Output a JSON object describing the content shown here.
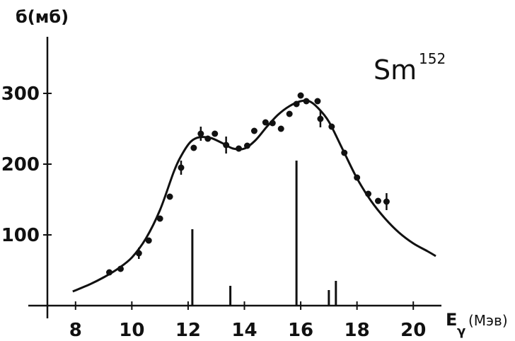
{
  "chart_data": {
    "type": "scatter",
    "ylabel": "б(мб)",
    "xlabel_main": "E",
    "xlabel_sub": "γ",
    "xlabel_unit": "(Мэв)",
    "annotation": {
      "element": "Sm",
      "mass": "152"
    },
    "xlim": [
      7,
      21
    ],
    "ylim": [
      0,
      380
    ],
    "grid": false,
    "x_ticks": [
      {
        "value": 8,
        "label": "8"
      },
      {
        "value": 10,
        "label": "10"
      },
      {
        "value": 12,
        "label": "12"
      },
      {
        "value": 14,
        "label": "14"
      },
      {
        "value": 16,
        "label": "16"
      },
      {
        "value": 18,
        "label": "18"
      },
      {
        "value": 20,
        "label": "20"
      }
    ],
    "y_ticks": [
      {
        "value": 100,
        "label": "100"
      },
      {
        "value": 200,
        "label": "200"
      },
      {
        "value": 300,
        "label": "300"
      }
    ],
    "series": [
      {
        "type": "scatter",
        "points": [
          {
            "x": 9.2,
            "y": 47
          },
          {
            "x": 9.6,
            "y": 52
          },
          {
            "x": 10.25,
            "y": 74,
            "err": 8
          },
          {
            "x": 10.6,
            "y": 92
          },
          {
            "x": 11.0,
            "y": 123
          },
          {
            "x": 11.35,
            "y": 154
          },
          {
            "x": 11.75,
            "y": 195,
            "err": 10
          },
          {
            "x": 12.2,
            "y": 223
          },
          {
            "x": 12.45,
            "y": 243,
            "err": 10
          },
          {
            "x": 12.7,
            "y": 236
          },
          {
            "x": 12.95,
            "y": 243
          },
          {
            "x": 13.35,
            "y": 227,
            "err": 12
          },
          {
            "x": 13.8,
            "y": 222
          },
          {
            "x": 14.1,
            "y": 226
          },
          {
            "x": 14.35,
            "y": 247
          },
          {
            "x": 14.75,
            "y": 259
          },
          {
            "x": 15.0,
            "y": 258
          },
          {
            "x": 15.3,
            "y": 250
          },
          {
            "x": 15.6,
            "y": 271
          },
          {
            "x": 15.85,
            "y": 285
          },
          {
            "x": 16.0,
            "y": 297
          },
          {
            "x": 16.2,
            "y": 289
          },
          {
            "x": 16.6,
            "y": 289
          },
          {
            "x": 16.7,
            "y": 264,
            "err": 12
          },
          {
            "x": 17.1,
            "y": 253
          },
          {
            "x": 17.55,
            "y": 216
          },
          {
            "x": 18.0,
            "y": 181
          },
          {
            "x": 18.4,
            "y": 158
          },
          {
            "x": 18.75,
            "y": 148
          },
          {
            "x": 19.05,
            "y": 147,
            "err": 12
          }
        ]
      },
      {
        "type": "line",
        "points": [
          {
            "x": 7.9,
            "y": 20
          },
          {
            "x": 8.5,
            "y": 30
          },
          {
            "x": 9.0,
            "y": 40
          },
          {
            "x": 9.5,
            "y": 52
          },
          {
            "x": 10.0,
            "y": 68
          },
          {
            "x": 10.5,
            "y": 95
          },
          {
            "x": 11.0,
            "y": 135
          },
          {
            "x": 11.5,
            "y": 190
          },
          {
            "x": 11.8,
            "y": 215
          },
          {
            "x": 12.1,
            "y": 232
          },
          {
            "x": 12.4,
            "y": 238
          },
          {
            "x": 12.8,
            "y": 237
          },
          {
            "x": 13.2,
            "y": 230
          },
          {
            "x": 13.6,
            "y": 222
          },
          {
            "x": 14.0,
            "y": 222
          },
          {
            "x": 14.4,
            "y": 234
          },
          {
            "x": 14.8,
            "y": 253
          },
          {
            "x": 15.2,
            "y": 270
          },
          {
            "x": 15.6,
            "y": 282
          },
          {
            "x": 16.0,
            "y": 289
          },
          {
            "x": 16.3,
            "y": 289
          },
          {
            "x": 16.6,
            "y": 280
          },
          {
            "x": 17.0,
            "y": 260
          },
          {
            "x": 17.5,
            "y": 220
          },
          {
            "x": 18.0,
            "y": 180
          },
          {
            "x": 18.5,
            "y": 148
          },
          {
            "x": 19.0,
            "y": 123
          },
          {
            "x": 19.5,
            "y": 103
          },
          {
            "x": 20.0,
            "y": 88
          },
          {
            "x": 20.5,
            "y": 77
          },
          {
            "x": 20.8,
            "y": 70
          }
        ]
      },
      {
        "type": "stick",
        "points": [
          {
            "x": 12.15,
            "y": 108
          },
          {
            "x": 13.5,
            "y": 28
          },
          {
            "x": 15.85,
            "y": 205
          },
          {
            "x": 17.0,
            "y": 22
          },
          {
            "x": 17.25,
            "y": 35
          }
        ]
      }
    ]
  }
}
